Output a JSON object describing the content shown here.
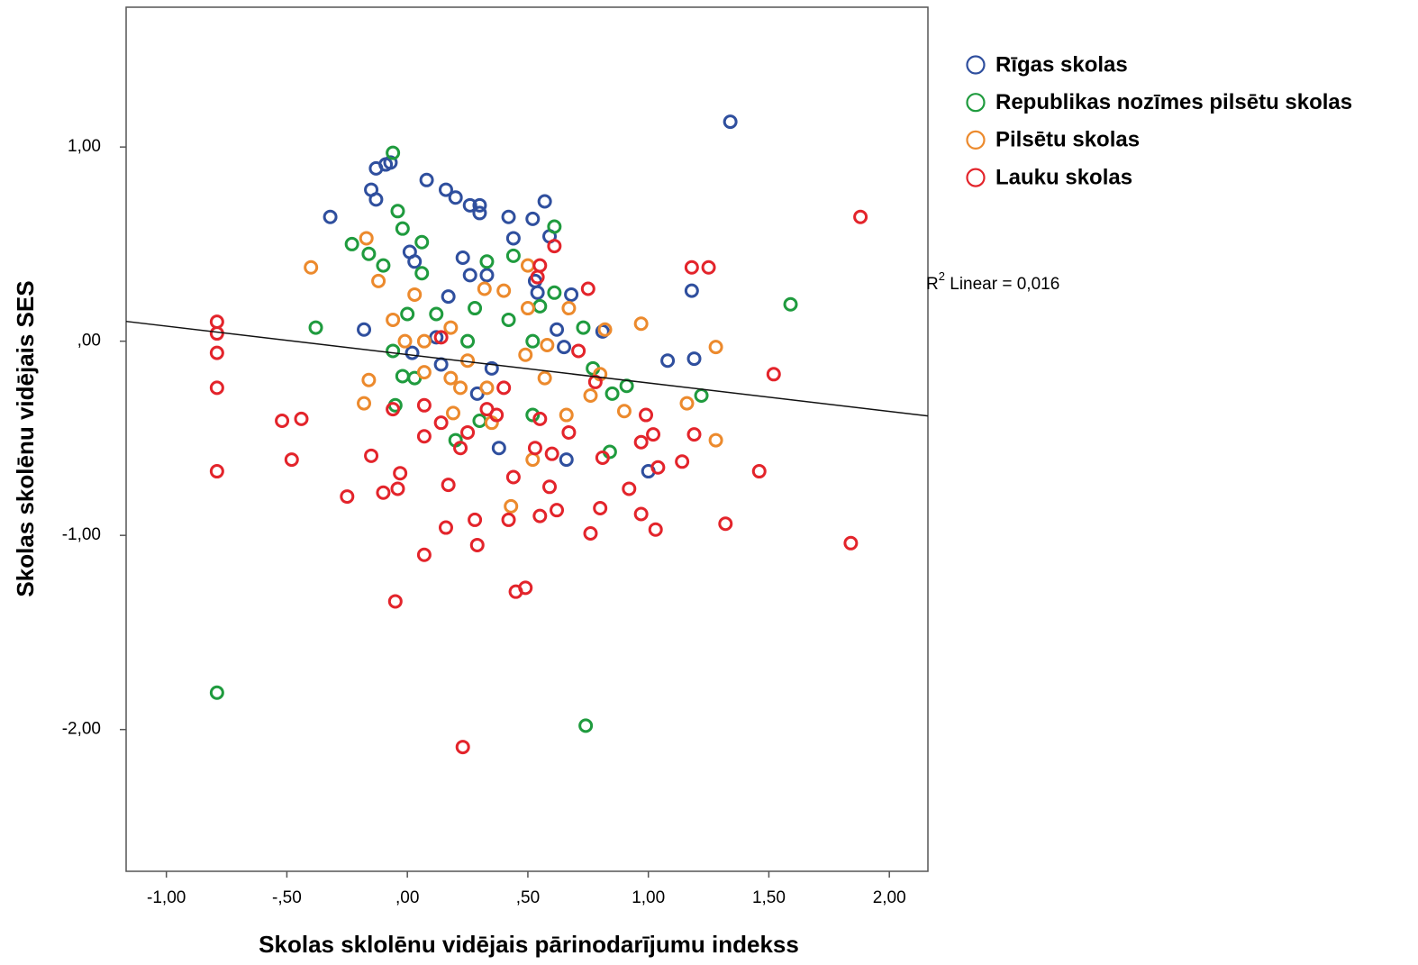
{
  "chart_data": {
    "type": "scatter",
    "xlabel": "Skolas sklolēnu vidējais pārinodarījumu indekss",
    "ylabel": "Skolas skolēnu vidējais SES",
    "xlim": [
      -1.167,
      2.16
    ],
    "ylim": [
      -2.73,
      1.72
    ],
    "xticks": [
      {
        "value": -1,
        "label": "-1,00"
      },
      {
        "value": -0.5,
        "label": "-,50"
      },
      {
        "value": 0,
        "label": ",00"
      },
      {
        "value": 0.5,
        "label": ",50"
      },
      {
        "value": 1,
        "label": "1,00"
      },
      {
        "value": 1.5,
        "label": "1,50"
      },
      {
        "value": 2,
        "label": "2,00"
      }
    ],
    "yticks": [
      {
        "value": 1,
        "label": "1,00"
      },
      {
        "value": 0,
        "label": ",00"
      },
      {
        "value": -1,
        "label": "-1,00"
      },
      {
        "value": -2,
        "label": "-2,00"
      }
    ],
    "annotation": {
      "base": "R",
      "sup": "2",
      "text": " Linear = 0,016"
    },
    "trend_line": {
      "x": [
        -1.167,
        2.16
      ],
      "y": [
        0.102,
        -0.385
      ]
    },
    "series": [
      {
        "name": "Rīgas skolas",
        "color": "#2f4f9e",
        "x": [
          1.34,
          -0.32,
          -0.13,
          -0.09,
          -0.07,
          -0.15,
          -0.13,
          0.08,
          0.16,
          0.2,
          0.26,
          0.3,
          0.3,
          0.42,
          0.52,
          0.57,
          0.44,
          0.59,
          0.23,
          0.26,
          0.33,
          0.17,
          0.53,
          0.54,
          0.68,
          1.18,
          -0.18,
          0.81,
          1.08,
          1.19,
          1.0,
          0.66,
          0.38,
          0.29,
          0.12,
          0.35,
          0.62,
          0.65,
          0.14,
          0.02,
          0.01,
          0.03
        ],
        "values": [
          1.13,
          0.64,
          0.89,
          0.91,
          0.92,
          0.78,
          0.73,
          0.83,
          0.78,
          0.74,
          0.7,
          0.7,
          0.66,
          0.64,
          0.63,
          0.72,
          0.53,
          0.54,
          0.43,
          0.34,
          0.34,
          0.23,
          0.31,
          0.25,
          0.24,
          0.26,
          0.06,
          0.05,
          -0.1,
          -0.09,
          -0.67,
          -0.61,
          -0.55,
          -0.27,
          0.02,
          -0.14,
          0.06,
          -0.03,
          -0.12,
          -0.06,
          0.46,
          0.41
        ]
      },
      {
        "name": "Republikas nozīmes pilsētu skolas",
        "color": "#1f9b3e",
        "x": [
          -0.06,
          0.74,
          -0.79,
          1.59,
          -0.38,
          -0.23,
          -0.16,
          -0.1,
          -0.02,
          -0.04,
          0.06,
          0.06,
          0.0,
          -0.06,
          -0.02,
          -0.05,
          0.12,
          0.28,
          0.44,
          0.55,
          0.61,
          0.73,
          0.77,
          0.91,
          1.22,
          0.85,
          0.3,
          0.2,
          0.52,
          0.33,
          0.61,
          0.52,
          0.25,
          0.42,
          0.03,
          0.84
        ],
        "values": [
          0.97,
          -1.98,
          -1.81,
          0.19,
          0.07,
          0.5,
          0.45,
          0.39,
          0.58,
          0.67,
          0.51,
          0.35,
          0.14,
          -0.05,
          -0.18,
          -0.33,
          0.14,
          0.17,
          0.44,
          0.18,
          0.25,
          0.07,
          -0.14,
          -0.23,
          -0.28,
          -0.27,
          -0.41,
          -0.51,
          -0.38,
          0.41,
          0.59,
          0.0,
          0.0,
          0.11,
          -0.19,
          -0.57
        ]
      },
      {
        "name": "Pilsētu skolas",
        "color": "#ec8a2d",
        "x": [
          -0.4,
          -0.17,
          -0.12,
          0.03,
          -0.06,
          -0.01,
          -0.16,
          -0.18,
          0.07,
          0.07,
          0.18,
          0.22,
          0.19,
          0.32,
          0.4,
          0.5,
          0.5,
          0.49,
          0.58,
          0.67,
          0.66,
          0.82,
          0.8,
          0.9,
          0.97,
          1.16,
          1.28,
          1.28,
          0.43,
          0.52,
          0.33,
          0.35,
          0.18,
          0.57,
          0.76,
          0.25
        ],
        "values": [
          0.38,
          0.53,
          0.31,
          0.24,
          0.11,
          0.0,
          -0.2,
          -0.32,
          -0.16,
          0.0,
          0.07,
          -0.24,
          -0.37,
          0.27,
          0.26,
          0.17,
          0.39,
          -0.07,
          -0.02,
          0.17,
          -0.38,
          0.06,
          -0.17,
          -0.36,
          0.09,
          -0.32,
          -0.03,
          -0.51,
          -0.85,
          -0.61,
          -0.24,
          -0.42,
          -0.19,
          -0.19,
          -0.28,
          -0.1
        ]
      },
      {
        "name": "Lauku skolas",
        "color": "#e3242b",
        "x": [
          1.88,
          1.84,
          -0.79,
          -0.79,
          -0.79,
          -0.79,
          -0.79,
          -0.52,
          -0.44,
          -0.48,
          -0.25,
          -0.15,
          -0.1,
          -0.04,
          -0.03,
          -0.05,
          0.07,
          0.17,
          0.16,
          0.28,
          0.29,
          0.23,
          0.45,
          0.49,
          0.42,
          0.55,
          0.62,
          0.76,
          0.8,
          0.97,
          1.03,
          0.92,
          0.81,
          0.97,
          0.99,
          1.02,
          1.14,
          1.19,
          1.04,
          1.32,
          1.46,
          1.52,
          1.18,
          1.25,
          0.75,
          0.61,
          0.55,
          0.54,
          0.71,
          0.78,
          0.37,
          0.33,
          0.07,
          0.14,
          0.22,
          0.25,
          0.07,
          0.55,
          0.67,
          0.44,
          0.53,
          0.6,
          -0.06,
          0.59,
          0.14,
          0.4
        ],
        "values": [
          0.64,
          -1.04,
          0.1,
          0.04,
          -0.06,
          -0.24,
          -0.67,
          -0.41,
          -0.4,
          -0.61,
          -0.8,
          -0.59,
          -0.78,
          -0.76,
          -0.68,
          -1.34,
          -1.1,
          -0.74,
          -0.96,
          -0.92,
          -1.05,
          -2.09,
          -1.29,
          -1.27,
          -0.92,
          -0.9,
          -0.87,
          -0.99,
          -0.86,
          -0.89,
          -0.97,
          -0.76,
          -0.6,
          -0.52,
          -0.38,
          -0.48,
          -0.62,
          -0.48,
          -0.65,
          -0.94,
          -0.67,
          -0.17,
          0.38,
          0.38,
          0.27,
          0.49,
          0.39,
          0.33,
          -0.05,
          -0.21,
          -0.38,
          -0.35,
          -0.33,
          -0.42,
          -0.55,
          -0.47,
          -0.49,
          -0.4,
          -0.47,
          -0.7,
          -0.55,
          -0.58,
          -0.35,
          -0.75,
          0.02,
          -0.24
        ]
      }
    ]
  }
}
